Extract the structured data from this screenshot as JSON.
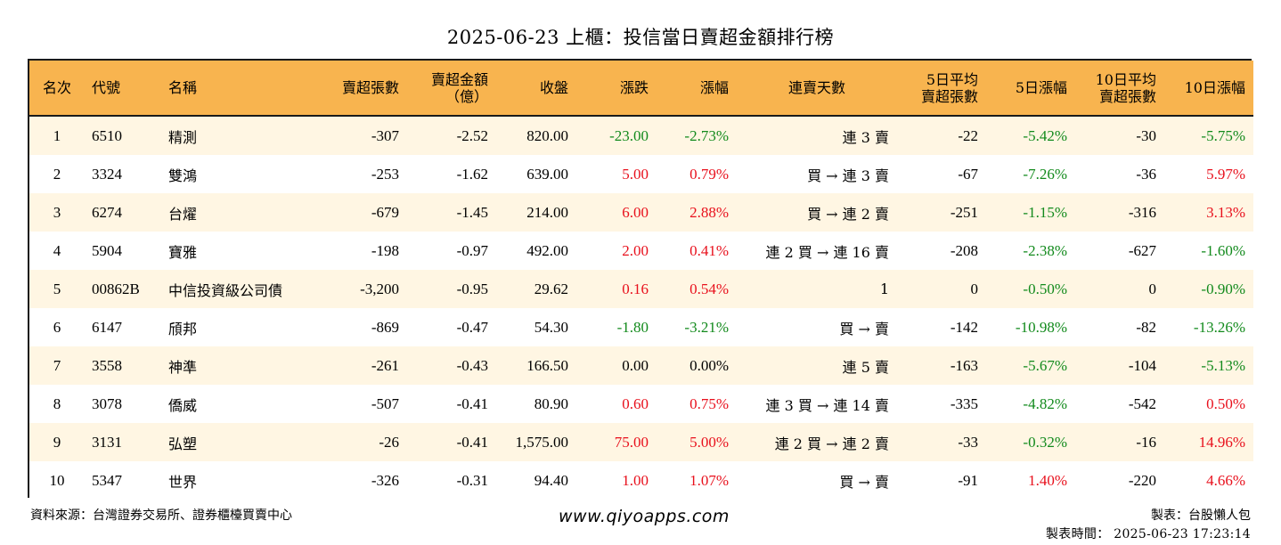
{
  "title": "2025-06-23 上櫃：投信當日賣超金額排行榜",
  "colors": {
    "header_bg": "#f8b44f",
    "row_alt_bg": "#fff6e3",
    "up": "#e8101c",
    "down": "#128a1c"
  },
  "headers": {
    "rank": "名次",
    "code": "代號",
    "name": "名稱",
    "sell_shares": "賣超張數",
    "sell_amount_1": "賣超金額",
    "sell_amount_2": "（億）",
    "close": "收盤",
    "change": "漲跌",
    "pct": "漲幅",
    "streak": "連賣天數",
    "avg5_1": "5日平均",
    "avg5_2": "賣超張數",
    "pct5": "5日漲幅",
    "avg10_1": "10日平均",
    "avg10_2": "賣超張數",
    "pct10": "10日漲幅"
  },
  "rows": [
    {
      "rank": "1",
      "code": "6510",
      "name": "精測",
      "sell_shares": "-307",
      "sell_amount": "-2.52",
      "close": "820.00",
      "change": "-23.00",
      "pct": "-2.73%",
      "streak": "連 3 賣",
      "avg5": "-22",
      "pct5": "-5.42%",
      "avg10": "-30",
      "pct10": "-5.75%"
    },
    {
      "rank": "2",
      "code": "3324",
      "name": "雙鴻",
      "sell_shares": "-253",
      "sell_amount": "-1.62",
      "close": "639.00",
      "change": "5.00",
      "pct": "0.79%",
      "streak": "買 → 連 3 賣",
      "avg5": "-67",
      "pct5": "-7.26%",
      "avg10": "-36",
      "pct10": "5.97%"
    },
    {
      "rank": "3",
      "code": "6274",
      "name": "台燿",
      "sell_shares": "-679",
      "sell_amount": "-1.45",
      "close": "214.00",
      "change": "6.00",
      "pct": "2.88%",
      "streak": "買 → 連 2 賣",
      "avg5": "-251",
      "pct5": "-1.15%",
      "avg10": "-316",
      "pct10": "3.13%"
    },
    {
      "rank": "4",
      "code": "5904",
      "name": "寶雅",
      "sell_shares": "-198",
      "sell_amount": "-0.97",
      "close": "492.00",
      "change": "2.00",
      "pct": "0.41%",
      "streak": "連 2 買 → 連 16 賣",
      "avg5": "-208",
      "pct5": "-2.38%",
      "avg10": "-627",
      "pct10": "-1.60%"
    },
    {
      "rank": "5",
      "code": "00862B",
      "name": "中信投資級公司債",
      "sell_shares": "-3,200",
      "sell_amount": "-0.95",
      "close": "29.62",
      "change": "0.16",
      "pct": "0.54%",
      "streak": "1",
      "avg5": "0",
      "pct5": "-0.50%",
      "avg10": "0",
      "pct10": "-0.90%"
    },
    {
      "rank": "6",
      "code": "6147",
      "name": "頎邦",
      "sell_shares": "-869",
      "sell_amount": "-0.47",
      "close": "54.30",
      "change": "-1.80",
      "pct": "-3.21%",
      "streak": "買 → 賣",
      "avg5": "-142",
      "pct5": "-10.98%",
      "avg10": "-82",
      "pct10": "-13.26%"
    },
    {
      "rank": "7",
      "code": "3558",
      "name": "神準",
      "sell_shares": "-261",
      "sell_amount": "-0.43",
      "close": "166.50",
      "change": "0.00",
      "pct": "0.00%",
      "streak": "連 5 賣",
      "avg5": "-163",
      "pct5": "-5.67%",
      "avg10": "-104",
      "pct10": "-5.13%"
    },
    {
      "rank": "8",
      "code": "3078",
      "name": "僑威",
      "sell_shares": "-507",
      "sell_amount": "-0.41",
      "close": "80.90",
      "change": "0.60",
      "pct": "0.75%",
      "streak": "連 3 買 → 連 14 賣",
      "avg5": "-335",
      "pct5": "-4.82%",
      "avg10": "-542",
      "pct10": "0.50%"
    },
    {
      "rank": "9",
      "code": "3131",
      "name": "弘塑",
      "sell_shares": "-26",
      "sell_amount": "-0.41",
      "close": "1,575.00",
      "change": "75.00",
      "pct": "5.00%",
      "streak": "連 2 買 → 連 2 賣",
      "avg5": "-33",
      "pct5": "-0.32%",
      "avg10": "-16",
      "pct10": "14.96%"
    },
    {
      "rank": "10",
      "code": "5347",
      "name": "世界",
      "sell_shares": "-326",
      "sell_amount": "-0.31",
      "close": "94.40",
      "change": "1.00",
      "pct": "1.07%",
      "streak": "買 → 賣",
      "avg5": "-91",
      "pct5": "1.40%",
      "avg10": "-220",
      "pct10": "4.66%"
    }
  ],
  "footer": {
    "source": "資料來源：台灣證券交易所、證券櫃檯買賣中心",
    "website": "www.qiyoapps.com",
    "author": "製表：台股懶人包",
    "time": "製表時間： 2025-06-23 17:23:14"
  }
}
